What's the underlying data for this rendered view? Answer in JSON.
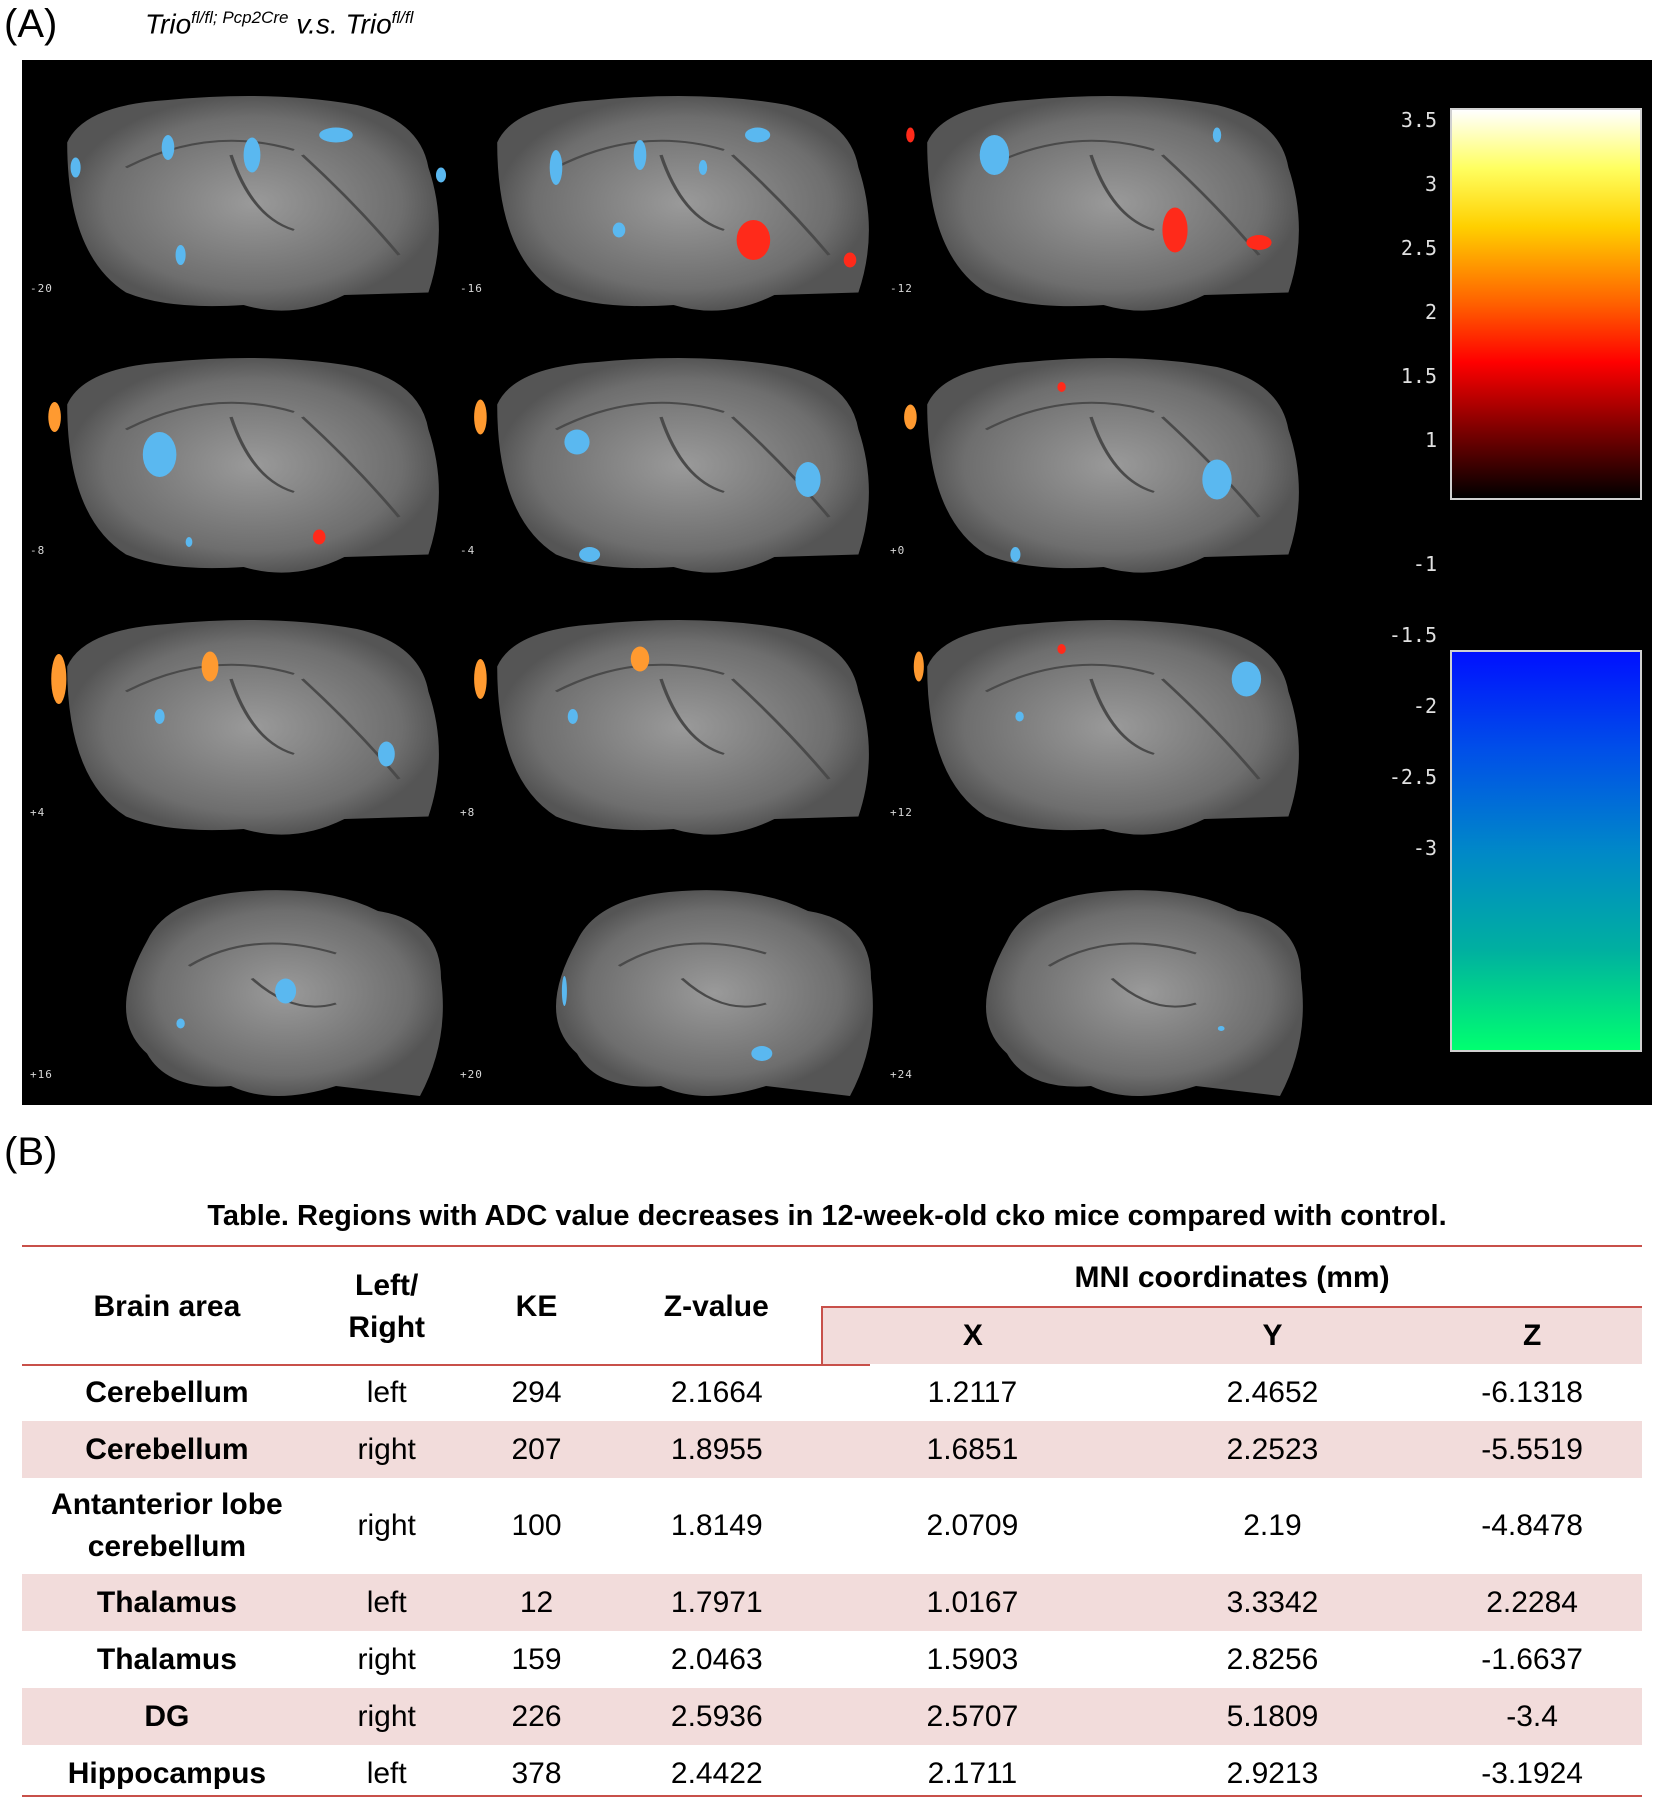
{
  "panel_a": {
    "label": "(A)",
    "title_parts": {
      "gene1": "Trio",
      "sup1": "fl/fl; Pcp2Cre",
      "vs": " v.s. ",
      "gene2": "Trio",
      "sup2": "fl/fl"
    },
    "slices": [
      {
        "label": "-20"
      },
      {
        "label": "-16"
      },
      {
        "label": "-12"
      },
      {
        "label": "-8"
      },
      {
        "label": "-4"
      },
      {
        "label": "+0"
      },
      {
        "label": "+4"
      },
      {
        "label": "+8"
      },
      {
        "label": "+12"
      },
      {
        "label": "+16"
      },
      {
        "label": "+20"
      },
      {
        "label": "+24"
      }
    ],
    "colorbar_positive": {
      "ticks": [
        "3.5",
        "3",
        "2.5",
        "2",
        "1.5",
        "1"
      ],
      "colors": [
        "#ffffff",
        "#ffff60",
        "#ff6000",
        "#ff0000",
        "#000000"
      ]
    },
    "colorbar_negative": {
      "ticks": [
        "-1",
        "-1.5",
        "-2",
        "-2.5",
        "-3"
      ],
      "colors": [
        "#0010ff",
        "#0088c8",
        "#00ff70"
      ]
    }
  },
  "panel_b": {
    "label": "(B)",
    "caption": "Table. Regions with ADC value decreases in 12-week-old cko mice compared with control.",
    "headers": {
      "brain_area": "Brain area",
      "left_right_1": "Left/",
      "left_right_2": "Right",
      "ke": "KE",
      "z_value": "Z-value",
      "mni": "MNI coordinates (mm)",
      "x": "X",
      "y": "Y",
      "z": "Z"
    },
    "rows": [
      {
        "area": "Cerebellum",
        "side": "left",
        "ke": "294",
        "zval": "2.1664",
        "x": "1.2117",
        "y": "2.4652",
        "z": "-6.1318"
      },
      {
        "area": "Cerebellum",
        "side": "right",
        "ke": "207",
        "zval": "1.8955",
        "x": "1.6851",
        "y": "2.2523",
        "z": "-5.5519"
      },
      {
        "area_line1": "Antanterior lobe",
        "area_line2": "cerebellum",
        "side": "right",
        "ke": "100",
        "zval": "1.8149",
        "x": "2.0709",
        "y": "2.19",
        "z": "-4.8478"
      },
      {
        "area": "Thalamus",
        "side": "left",
        "ke": "12",
        "zval": "1.7971",
        "x": "1.0167",
        "y": "3.3342",
        "z": "2.2284"
      },
      {
        "area": "Thalamus",
        "side": "right",
        "ke": "159",
        "zval": "2.0463",
        "x": "1.5903",
        "y": "2.8256",
        "z": "-1.6637"
      },
      {
        "area": "DG",
        "side": "right",
        "ke": "226",
        "zval": "2.5936",
        "x": "2.5707",
        "y": "5.1809",
        "z": "-3.4"
      },
      {
        "area": "Hippocampus",
        "side": "left",
        "ke": "378",
        "zval": "2.4422",
        "x": "2.1711",
        "y": "2.9213",
        "z": "-3.1924"
      }
    ]
  }
}
